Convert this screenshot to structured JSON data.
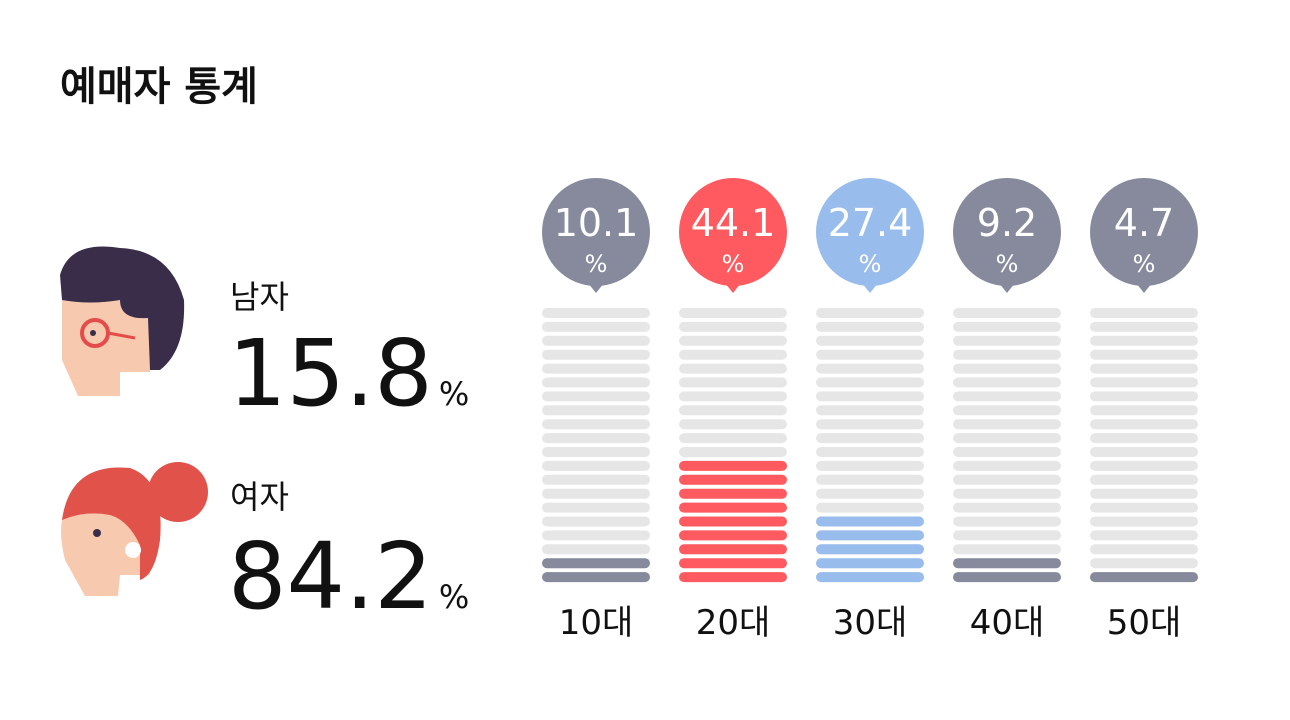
{
  "title": "예매자 통계",
  "unit": "%",
  "gender": [
    {
      "label": "남자",
      "value": 15.8
    },
    {
      "label": "여자",
      "value": 84.2
    }
  ],
  "chart_data": {
    "type": "segmented-bar",
    "categories": [
      "10대",
      "20대",
      "30대",
      "40대",
      "50대"
    ],
    "values": [
      10.1,
      44.1,
      27.4,
      9.2,
      4.7
    ],
    "colors": [
      "#868a9c",
      "#ff5a5f",
      "#98bcec",
      "#868a9c",
      "#868a9c"
    ],
    "ylim": [
      0,
      100
    ]
  }
}
